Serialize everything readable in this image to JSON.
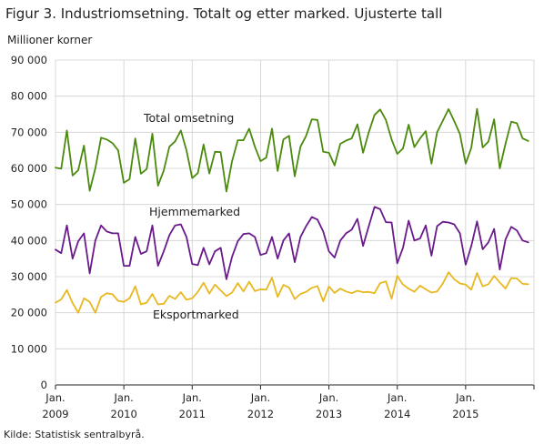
{
  "title": "Figur 3. Industriomsetning. Totalt og etter marked. Ujusterte tall",
  "source": "Kilde: Statistisk sentralbyrå.",
  "chart_data": {
    "type": "line",
    "ylabel": "Millioner  korner",
    "ylim": [
      0,
      90000
    ],
    "yticks": [
      0,
      10000,
      20000,
      30000,
      40000,
      50000,
      60000,
      70000,
      80000,
      90000
    ],
    "ytick_labels": [
      "0",
      "10 000",
      "20 000",
      "30 000",
      "40 000",
      "50 000",
      "60 000",
      "70 000",
      "80 000",
      "90 000"
    ],
    "x_start": "2009-01",
    "x_end": "2015-12",
    "xtick_labels": [
      {
        "month": "Jan.",
        "year": "2009"
      },
      {
        "month": "Jan.",
        "year": "2010"
      },
      {
        "month": "Jan.",
        "year": "2011"
      },
      {
        "month": "Jan.",
        "year": "2012"
      },
      {
        "month": "Jan.",
        "year": "2013"
      },
      {
        "month": "Jan.",
        "year": "2014"
      },
      {
        "month": "Jan.",
        "year": "2015"
      }
    ],
    "grid": true,
    "series": [
      {
        "name": "Total omsetning",
        "color": "#4a8a0c",
        "values": [
          60200,
          59900,
          70500,
          58000,
          59500,
          66300,
          53800,
          60000,
          68500,
          68000,
          67000,
          65000,
          56000,
          57000,
          68300,
          58500,
          59800,
          69600,
          55200,
          59400,
          66000,
          67500,
          70500,
          65000,
          57300,
          58700,
          66600,
          58600,
          64600,
          64500,
          53600,
          62000,
          67800,
          67800,
          71000,
          66000,
          62000,
          63000,
          71000,
          59300,
          68000,
          69000,
          57800,
          66000,
          69000,
          73600,
          73400,
          64600,
          64300,
          60800,
          66800,
          67700,
          68300,
          72200,
          64300,
          70000,
          74800,
          76300,
          73400,
          68000,
          64000,
          65500,
          72100,
          65900,
          68300,
          70300,
          61300,
          70000,
          73200,
          76400,
          73100,
          69500,
          61300,
          65700,
          76500,
          65800,
          67400,
          73600,
          60000,
          66800,
          72900,
          72500,
          68300,
          67600
        ]
      },
      {
        "name": "Hjemmemarked",
        "color": "#6a1a8a",
        "values": [
          37500,
          36500,
          44200,
          35000,
          39800,
          42000,
          30900,
          40000,
          44200,
          42500,
          42000,
          42000,
          33000,
          33000,
          41000,
          36300,
          37000,
          44200,
          33000,
          37000,
          41500,
          44200,
          44500,
          41000,
          33500,
          33200,
          38000,
          33400,
          37000,
          38000,
          29300,
          35500,
          39800,
          41800,
          42000,
          41000,
          36000,
          36500,
          41000,
          35000,
          40000,
          42000,
          34000,
          41000,
          44000,
          46500,
          45800,
          42500,
          37000,
          35300,
          40000,
          42000,
          43000,
          46000,
          38500,
          44000,
          49300,
          48700,
          45100,
          45000,
          33700,
          38000,
          45500,
          40000,
          40600,
          44200,
          35800,
          44000,
          45200,
          45000,
          44500,
          42000,
          33300,
          38500,
          45300,
          37600,
          39500,
          43200,
          32000,
          40300,
          43800,
          42800,
          40000,
          39500
        ]
      },
      {
        "name": "Eksportmarked",
        "color": "#e8b820",
        "values": [
          22800,
          23700,
          26300,
          22700,
          20000,
          24000,
          23000,
          20000,
          24400,
          25400,
          25100,
          23300,
          23000,
          24000,
          27300,
          22300,
          22800,
          25200,
          22300,
          22500,
          24700,
          23800,
          25700,
          23600,
          24000,
          25800,
          28300,
          25300,
          27800,
          26200,
          24600,
          25600,
          28200,
          25900,
          28600,
          26000,
          26500,
          26400,
          29700,
          24400,
          27700,
          27000,
          23800,
          25200,
          25800,
          26900,
          27400,
          23200,
          27300,
          25500,
          26700,
          25900,
          25400,
          26100,
          25700,
          25800,
          25400,
          28200,
          28700,
          23900,
          30200,
          27800,
          26700,
          25800,
          27500,
          26500,
          25600,
          25900,
          28100,
          31200,
          29300,
          28100,
          27800,
          26400,
          31000,
          27300,
          27900,
          30200,
          28400,
          26700,
          29600,
          29500,
          28000,
          27900
        ]
      }
    ],
    "annotations": [
      {
        "text": "Total omsetning",
        "series": "Total omsetning"
      },
      {
        "text": "Hjemmemarked",
        "series": "Hjemmemarked"
      },
      {
        "text": "Eksportmarked",
        "series": "Eksportmarked"
      }
    ]
  }
}
